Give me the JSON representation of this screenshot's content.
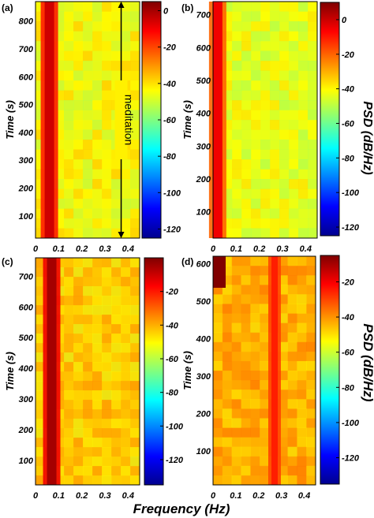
{
  "figure": {
    "xlabel": "Frequency (Hz)",
    "colorbar_label": "PSD (dB/Hz)"
  },
  "chart_data": [
    {
      "type": "heatmap",
      "panel_label": "(a)",
      "xlabel": "",
      "ylabel": "Time (s)",
      "x_ticks": [
        "0",
        "0.1",
        "0.2",
        "0.3",
        "0.4"
      ],
      "y_ticks": [
        "100",
        "200",
        "300",
        "400",
        "500",
        "600",
        "700",
        "800"
      ],
      "xlim": [
        0,
        0.45
      ],
      "ylim": [
        20,
        870
      ],
      "colorbar": {
        "range": [
          -125,
          5
        ],
        "ticks": [
          "0",
          "-20",
          "-40",
          "-60",
          "-80",
          "-100",
          "-120"
        ]
      },
      "ridge": {
        "frequency": 0.06,
        "levels": [
          -5,
          -15
        ]
      },
      "annotation": {
        "text": "meditation",
        "from": 20,
        "to": 870,
        "frequency": 0.37
      }
    },
    {
      "type": "heatmap",
      "panel_label": "(b)",
      "xlabel": "",
      "ylabel": "Time (s)",
      "x_ticks": [
        "0",
        "0.1",
        "0.2",
        "0.3",
        "0.4"
      ],
      "y_ticks": [
        "100",
        "200",
        "300",
        "400",
        "500",
        "600",
        "700"
      ],
      "xlim": [
        0,
        0.45
      ],
      "ylim": [
        20,
        740
      ],
      "colorbar": {
        "range": [
          -125,
          10
        ],
        "ticks": [
          "0",
          "-20",
          "-40",
          "-60",
          "-80",
          "-100",
          "-120"
        ]
      },
      "ridge": {
        "frequency": 0.02,
        "levels": [
          -5,
          -20
        ]
      }
    },
    {
      "type": "heatmap",
      "panel_label": "(c)",
      "xlabel": "",
      "ylabel": "Time (s)",
      "x_ticks": [
        "0",
        "0.1",
        "0.2",
        "0.3",
        "0.4"
      ],
      "y_ticks": [
        "100",
        "200",
        "300",
        "400",
        "500",
        "600",
        "700"
      ],
      "xlim": [
        0,
        0.45
      ],
      "ylim": [
        20,
        760
      ],
      "colorbar": {
        "range": [
          -135,
          0
        ],
        "ticks": [
          "-20",
          "-40",
          "-60",
          "-80",
          "-100",
          "-120"
        ]
      },
      "ridge": {
        "frequency": 0.07,
        "levels": [
          -5,
          -15
        ]
      }
    },
    {
      "type": "heatmap",
      "panel_label": "(d)",
      "xlabel": "",
      "ylabel": "Time (s)",
      "x_ticks": [
        "0",
        "0.1",
        "0.2",
        "0.3",
        "0.4"
      ],
      "y_ticks": [
        "100",
        "200",
        "300",
        "400",
        "500",
        "600"
      ],
      "xlim": [
        0,
        0.45
      ],
      "ylim": [
        10,
        620
      ],
      "colorbar": {
        "range": [
          -135,
          -5
        ],
        "ticks": [
          "-20",
          "-40",
          "-60",
          "-80",
          "-100",
          "-120"
        ]
      },
      "ridge": {
        "frequency": 0.27,
        "levels": [
          -25,
          -30
        ]
      }
    }
  ]
}
